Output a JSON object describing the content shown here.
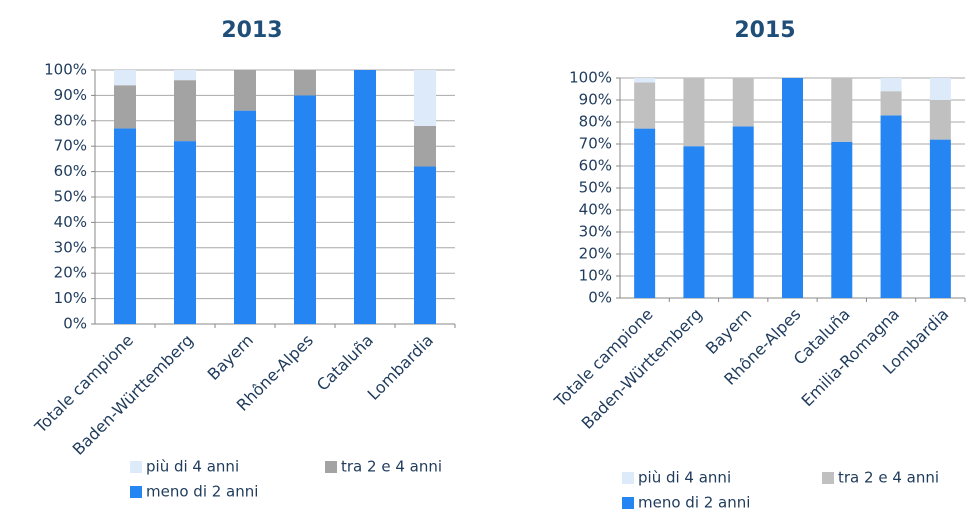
{
  "chart_data": [
    {
      "type": "bar",
      "stacked": true,
      "title": "2013",
      "categories": [
        "Totale campione",
        "Baden-Württemberg",
        "Bayern",
        "Rhône-Alpes",
        "Cataluña",
        "Lombardia"
      ],
      "series": [
        {
          "name": "più di 4 anni",
          "color": "#ddeaf9",
          "values": [
            6,
            4,
            0,
            0,
            0,
            22
          ]
        },
        {
          "name": "tra 2 e 4 anni",
          "color": "#a3a3a3",
          "values": [
            17,
            24,
            16,
            10,
            0,
            16
          ]
        },
        {
          "name": "meno di 2 anni",
          "color": "#2585f2",
          "values": [
            77,
            72,
            84,
            90,
            100,
            62
          ]
        }
      ],
      "ylim": [
        0,
        100
      ],
      "yticks": [
        {
          "value": 0,
          "label": "0%"
        },
        {
          "value": 10,
          "label": "10%"
        },
        {
          "value": 20,
          "label": "20%"
        },
        {
          "value": 30,
          "label": "30%"
        },
        {
          "value": 40,
          "label": "40%"
        },
        {
          "value": 50,
          "label": "50%"
        },
        {
          "value": 60,
          "label": "60%"
        },
        {
          "value": 70,
          "label": "70%"
        },
        {
          "value": 80,
          "label": "80%"
        },
        {
          "value": 90,
          "label": "90%"
        },
        {
          "value": 100,
          "label": "100%"
        }
      ],
      "grid": true
    },
    {
      "type": "bar",
      "stacked": true,
      "title": "2015",
      "categories": [
        "Totale campione",
        "Baden-Württemberg",
        "Bayern",
        "Rhône-Alpes",
        "Cataluña",
        "Emilia-Romagna",
        "Lombardia"
      ],
      "series": [
        {
          "name": "più di 4 anni",
          "color": "#ddeaf9",
          "values": [
            2,
            0,
            0,
            0,
            0,
            6,
            10
          ]
        },
        {
          "name": "tra 2 e 4 anni",
          "color": "#c0c0c0",
          "values": [
            21,
            31,
            22,
            0,
            29,
            11,
            18
          ]
        },
        {
          "name": "meno di 2 anni",
          "color": "#2585f2",
          "values": [
            77,
            69,
            78,
            100,
            71,
            83,
            72
          ]
        }
      ],
      "ylim": [
        0,
        100
      ],
      "yticks": [
        {
          "value": 0,
          "label": "0%"
        },
        {
          "value": 10,
          "label": "10%"
        },
        {
          "value": 20,
          "label": "20%"
        },
        {
          "value": 30,
          "label": "30%"
        },
        {
          "value": 40,
          "label": "40%"
        },
        {
          "value": 50,
          "label": "50%"
        },
        {
          "value": 60,
          "label": "60%"
        },
        {
          "value": 70,
          "label": "70%"
        },
        {
          "value": 80,
          "label": "80%"
        },
        {
          "value": 90,
          "label": "90%"
        },
        {
          "value": 100,
          "label": "100%"
        }
      ],
      "grid": true
    }
  ]
}
